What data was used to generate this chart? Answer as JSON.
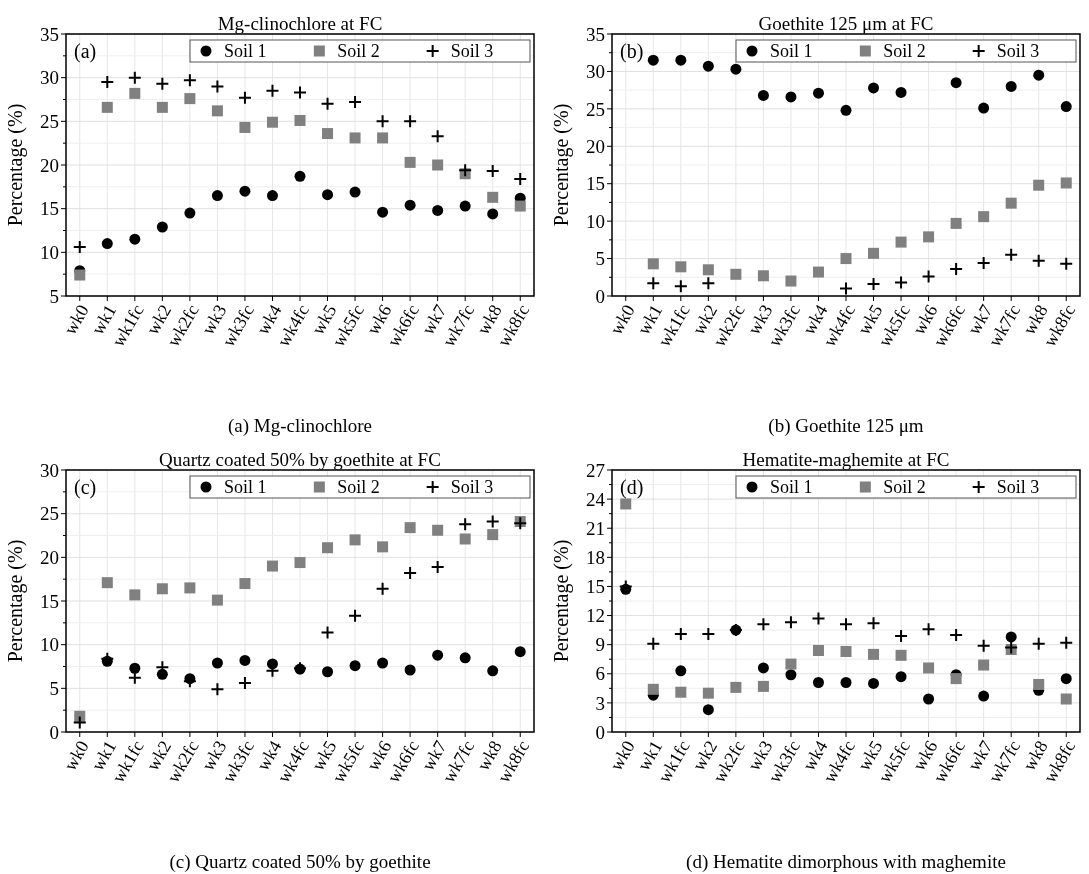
{
  "chart_data": [
    {
      "type": "scatter",
      "title": "Mg-clinochlore at FC",
      "ylabel": "Percentage (%)",
      "annotations": [
        "(a)",
        "(a) Mg-clinochlore"
      ],
      "categories": [
        "wk0",
        "wk1",
        "wk1fc",
        "wk2",
        "wk2fc",
        "wk3",
        "wk3fc",
        "wk4",
        "wk4fc",
        "wk5",
        "wk5fc",
        "wk6",
        "wk6fc",
        "wk7",
        "wk7fc",
        "wk8",
        "wk8fc"
      ],
      "ylim": [
        5,
        35
      ],
      "yticks": [
        5,
        10,
        15,
        20,
        25,
        30,
        35
      ],
      "grid": true,
      "legend": "top right",
      "series": [
        {
          "name": "Soil 1",
          "color": "#000000",
          "marker": "circle",
          "values": [
            7.9,
            11.0,
            11.5,
            12.9,
            14.5,
            16.5,
            17.0,
            16.5,
            18.7,
            16.6,
            16.9,
            14.6,
            15.4,
            14.8,
            15.3,
            14.4,
            16.2
          ]
        },
        {
          "name": "Soil 2",
          "color": "#808080",
          "marker": "square",
          "values": [
            7.4,
            26.6,
            28.2,
            26.6,
            27.6,
            26.2,
            24.3,
            24.9,
            25.1,
            23.6,
            23.1,
            23.1,
            20.3,
            20.0,
            19.0,
            16.3,
            15.3
          ]
        },
        {
          "name": "Soil 3",
          "color": "#000000",
          "marker": "cross",
          "values": [
            10.6,
            29.5,
            30.0,
            29.3,
            29.7,
            29.0,
            27.7,
            28.5,
            28.3,
            27.0,
            27.2,
            25.0,
            25.0,
            23.3,
            19.4,
            19.3,
            18.4
          ]
        }
      ]
    },
    {
      "type": "scatter",
      "title": "Goethite 125 μm at FC",
      "ylabel": "Percentage (%)",
      "annotations": [
        "(b)",
        "(b) Goethite 125 μm"
      ],
      "categories": [
        "wk0",
        "wk1",
        "wk1fc",
        "wk2",
        "wk2fc",
        "wk3",
        "wk3fc",
        "wk4",
        "wk4fc",
        "wk5",
        "wk5fc",
        "wk6",
        "wk6fc",
        "wk7",
        "wk7fc",
        "wk8",
        "wk8fc"
      ],
      "ylim": [
        0,
        35
      ],
      "yticks": [
        0,
        5,
        10,
        15,
        20,
        25,
        30,
        35
      ],
      "grid": true,
      "legend": "top right",
      "series": [
        {
          "name": "Soil 1",
          "color": "#000000",
          "marker": "circle",
          "values": [
            null,
            31.5,
            31.5,
            30.7,
            30.3,
            26.8,
            26.6,
            27.1,
            24.8,
            27.8,
            27.2,
            null,
            28.5,
            25.1,
            28.0,
            29.5,
            25.3
          ]
        },
        {
          "name": "Soil 2",
          "color": "#808080",
          "marker": "square",
          "values": [
            null,
            4.3,
            3.9,
            3.5,
            2.9,
            2.7,
            2.0,
            3.2,
            5.0,
            5.7,
            7.2,
            7.9,
            9.7,
            10.6,
            12.4,
            14.8,
            15.1
          ]
        },
        {
          "name": "Soil 3",
          "color": "#000000",
          "marker": "cross",
          "values": [
            null,
            1.7,
            1.3,
            1.7,
            null,
            null,
            null,
            null,
            1.0,
            1.6,
            1.8,
            2.6,
            3.6,
            4.4,
            5.5,
            4.7,
            4.3
          ]
        }
      ]
    },
    {
      "type": "scatter",
      "title": "Quartz coated 50% by goethite at FC",
      "ylabel": "Percentage (%)",
      "annotations": [
        "(c)",
        "(c) Quartz coated 50% by goethite"
      ],
      "categories": [
        "wk0",
        "wk1",
        "wk1fc",
        "wk2",
        "wk2fc",
        "wk3",
        "wk3fc",
        "wk4",
        "wk4fc",
        "wk5",
        "wk5fc",
        "wk6",
        "wk6fc",
        "wk7",
        "wk7fc",
        "wk8",
        "wk8fc"
      ],
      "ylim": [
        0,
        30
      ],
      "yticks": [
        0,
        5,
        10,
        15,
        20,
        25,
        30
      ],
      "grid": true,
      "legend": "top right",
      "series": [
        {
          "name": "Soil 1",
          "color": "#000000",
          "marker": "circle",
          "values": [
            null,
            8.1,
            7.3,
            6.6,
            6.1,
            7.9,
            8.2,
            7.8,
            7.2,
            6.9,
            7.6,
            7.9,
            7.1,
            8.8,
            8.5,
            7.0,
            9.2
          ]
        },
        {
          "name": "Soil 2",
          "color": "#808080",
          "marker": "square",
          "values": [
            1.8,
            17.1,
            15.7,
            16.4,
            16.5,
            15.1,
            17.0,
            19.0,
            19.4,
            21.1,
            22.0,
            21.2,
            23.4,
            23.1,
            22.1,
            22.6,
            24.1
          ]
        },
        {
          "name": "Soil 3",
          "color": "#000000",
          "marker": "cross",
          "values": [
            1.1,
            8.4,
            6.2,
            7.4,
            5.8,
            4.9,
            5.6,
            7.0,
            7.3,
            11.4,
            13.3,
            16.4,
            18.2,
            18.9,
            23.8,
            24.1,
            23.9
          ]
        }
      ]
    },
    {
      "type": "scatter",
      "title": "Hematite-maghemite at FC",
      "ylabel": "Percentage (%)",
      "annotations": [
        "(d)",
        "(d) Hematite dimorphous with maghemite"
      ],
      "categories": [
        "wk0",
        "wk1",
        "wk1fc",
        "wk2",
        "wk2fc",
        "wk3",
        "wk3fc",
        "wk4",
        "wk4fc",
        "wk5",
        "wk5fc",
        "wk6",
        "wk6fc",
        "wk7",
        "wk7fc",
        "wk8",
        "wk8fc"
      ],
      "ylim": [
        0,
        27
      ],
      "yticks": [
        0,
        3,
        6,
        9,
        12,
        15,
        18,
        21,
        24,
        27
      ],
      "grid": true,
      "legend": "top right",
      "series": [
        {
          "name": "Soil 1",
          "color": "#000000",
          "marker": "circle",
          "values": [
            14.7,
            3.8,
            6.3,
            2.3,
            10.5,
            6.6,
            5.9,
            5.1,
            5.1,
            5.0,
            5.7,
            3.4,
            5.9,
            3.7,
            9.8,
            4.3,
            5.5
          ]
        },
        {
          "name": "Soil 2",
          "color": "#808080",
          "marker": "square",
          "values": [
            23.5,
            4.4,
            4.1,
            4.0,
            4.6,
            4.7,
            7.0,
            8.4,
            8.3,
            8.0,
            7.9,
            6.6,
            5.5,
            6.9,
            8.5,
            4.9,
            3.4
          ]
        },
        {
          "name": "Soil 3",
          "color": "#000000",
          "marker": "cross",
          "values": [
            15.0,
            9.1,
            10.1,
            10.1,
            10.5,
            11.1,
            11.3,
            11.7,
            11.1,
            11.2,
            9.9,
            10.6,
            10.0,
            8.9,
            8.7,
            9.1,
            9.2
          ]
        }
      ]
    }
  ]
}
